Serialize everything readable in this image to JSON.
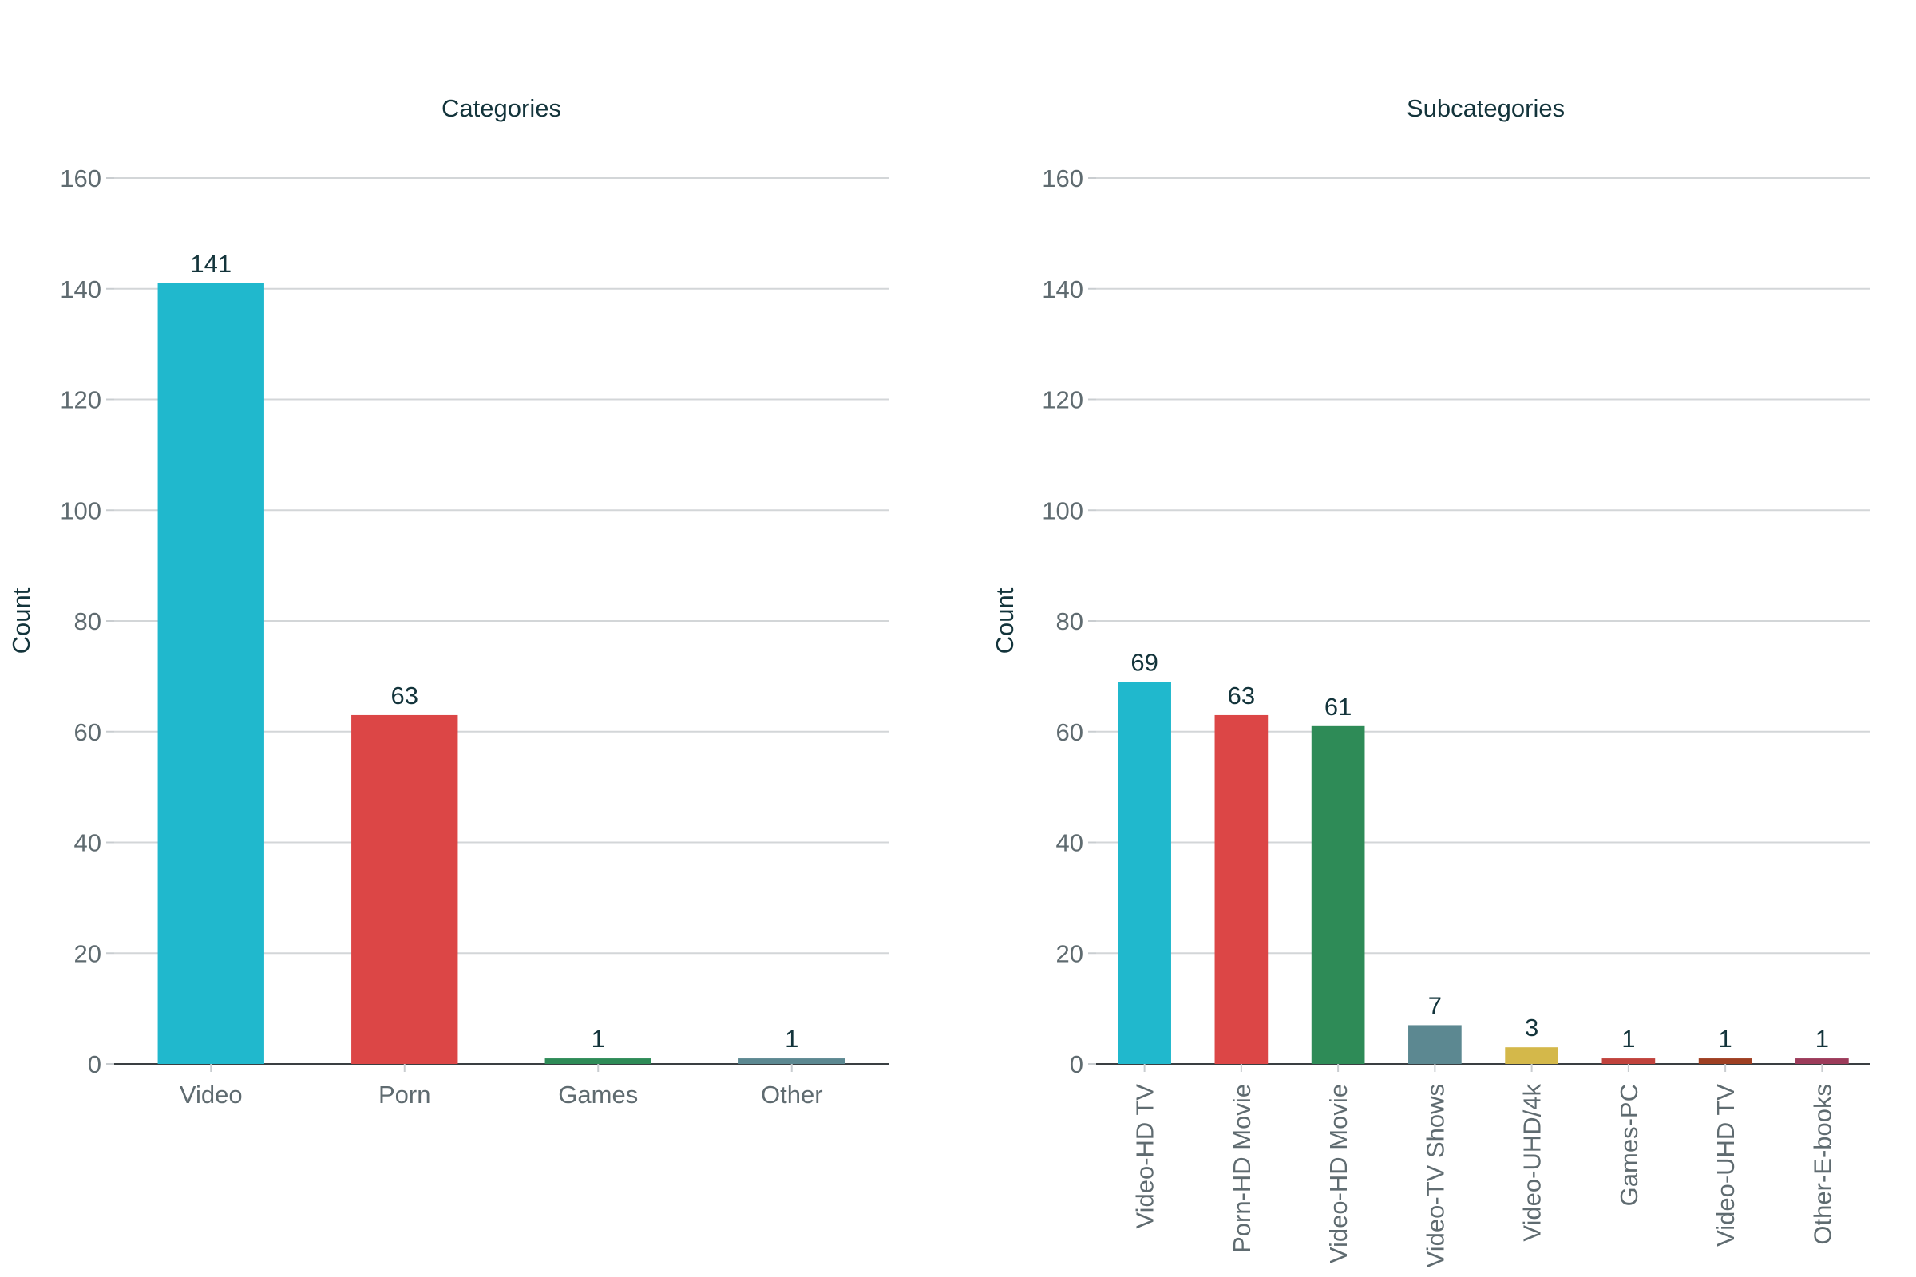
{
  "chart_data": [
    {
      "type": "bar",
      "title": "Categories",
      "xlabel": "",
      "ylabel": "Count",
      "ylim": [
        0,
        160
      ],
      "yticks": [
        0,
        20,
        40,
        60,
        80,
        100,
        120,
        140,
        160
      ],
      "categories": [
        "Video",
        "Porn",
        "Games",
        "Other"
      ],
      "values": [
        141,
        63,
        1,
        1
      ],
      "colors": [
        "#20b8cd",
        "#dc4646",
        "#2e8b57",
        "#5c8891"
      ],
      "grid": true,
      "x_tick_rotation": 0
    },
    {
      "type": "bar",
      "title": "Subcategories",
      "xlabel": "",
      "ylabel": "Count",
      "ylim": [
        0,
        160
      ],
      "yticks": [
        0,
        20,
        40,
        60,
        80,
        100,
        120,
        140,
        160
      ],
      "categories": [
        "Video-HD TV",
        "Porn-HD Movie",
        "Video-HD Movie",
        "Video-TV Shows",
        "Video-UHD/4k",
        "Games-PC",
        "Video-UHD TV",
        "Other-E-books"
      ],
      "values": [
        69,
        63,
        61,
        7,
        3,
        1,
        1,
        1
      ],
      "colors": [
        "#20b8cd",
        "#dc4646",
        "#2e8b57",
        "#5c8891",
        "#d4b84a",
        "#c0423c",
        "#9e3f22",
        "#9c3b5a"
      ],
      "grid": true,
      "x_tick_rotation": -90
    }
  ]
}
